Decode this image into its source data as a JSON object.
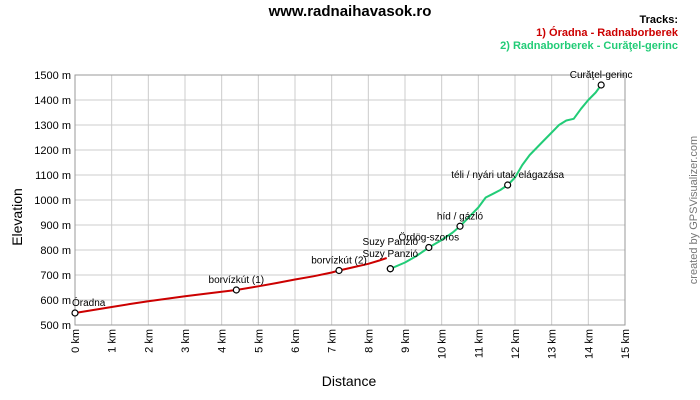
{
  "header": {
    "site": "www.radnaihavasok.ro",
    "tracks_label": "Tracks:"
  },
  "credit": "created by GPSVisualizer.com",
  "chart_data": {
    "type": "line",
    "xlabel": "Distance",
    "ylabel": "Elevation",
    "xlim": [
      0,
      15
    ],
    "ylim": [
      500,
      1500
    ],
    "x_ticks": [
      0,
      1,
      2,
      3,
      4,
      5,
      6,
      7,
      8,
      9,
      10,
      11,
      12,
      13,
      14,
      15
    ],
    "x_tick_labels": [
      "0 km",
      "1 km",
      "2 km",
      "3 km",
      "4 km",
      "5 km",
      "6 km",
      "7 km",
      "8 km",
      "9 km",
      "10 km",
      "11 km",
      "12 km",
      "13 km",
      "14 km",
      "15 km"
    ],
    "y_ticks": [
      500,
      600,
      700,
      800,
      900,
      1000,
      1100,
      1200,
      1300,
      1400,
      1500
    ],
    "y_tick_labels": [
      "500 m",
      "600 m",
      "700 m",
      "800 m",
      "900 m",
      "1000 m",
      "1100 m",
      "1200 m",
      "1300 m",
      "1400 m",
      "1500 m"
    ],
    "grid": true,
    "legend": "top-right",
    "series": [
      {
        "name": "1) Óradna - Radnaborberek",
        "color": "#cc0000",
        "x": [
          0,
          0.5,
          1,
          1.5,
          2,
          2.5,
          3,
          3.5,
          4,
          4.4,
          5,
          5.5,
          6,
          6.5,
          7,
          7.2,
          7.5,
          8,
          8.3,
          8.5
        ],
        "y": [
          548,
          560,
          572,
          584,
          595,
          605,
          615,
          624,
          633,
          640,
          655,
          668,
          682,
          695,
          710,
          718,
          728,
          745,
          758,
          768
        ]
      },
      {
        "name": "2) Radnaborberek - Curăţel-gerinc",
        "color": "#22cc77",
        "x": [
          8.6,
          9.0,
          9.3,
          9.65,
          10.0,
          10.3,
          10.5,
          10.8,
          11.0,
          11.2,
          11.4,
          11.6,
          11.8,
          12.0,
          12.2,
          12.4,
          12.6,
          12.8,
          13.0,
          13.2,
          13.4,
          13.6,
          13.8,
          14.0,
          14.2,
          14.35
        ],
        "y": [
          725,
          750,
          775,
          810,
          840,
          870,
          895,
          940,
          970,
          1010,
          1025,
          1040,
          1060,
          1090,
          1140,
          1180,
          1210,
          1240,
          1270,
          1300,
          1318,
          1325,
          1365,
          1400,
          1430,
          1460
        ]
      }
    ],
    "waypoints": [
      {
        "label": "Óradna",
        "x": 0,
        "y": 548
      },
      {
        "label": "borvízkút (1)",
        "x": 4.4,
        "y": 640
      },
      {
        "label": "borvízkút (2)",
        "x": 7.2,
        "y": 718
      },
      {
        "label": "Suzy Panzió",
        "x": 8.6,
        "y": 725
      },
      {
        "label": "Suzy Panzió",
        "x": 8.6,
        "y": 725
      },
      {
        "label": "Ördög-szoros",
        "x": 9.65,
        "y": 810
      },
      {
        "label": "híd / gázló",
        "x": 10.5,
        "y": 895
      },
      {
        "label": "téli / nyári utak elágazása",
        "x": 11.8,
        "y": 1060
      },
      {
        "label": "Curăţel-gerinc",
        "x": 14.35,
        "y": 1460
      }
    ]
  }
}
